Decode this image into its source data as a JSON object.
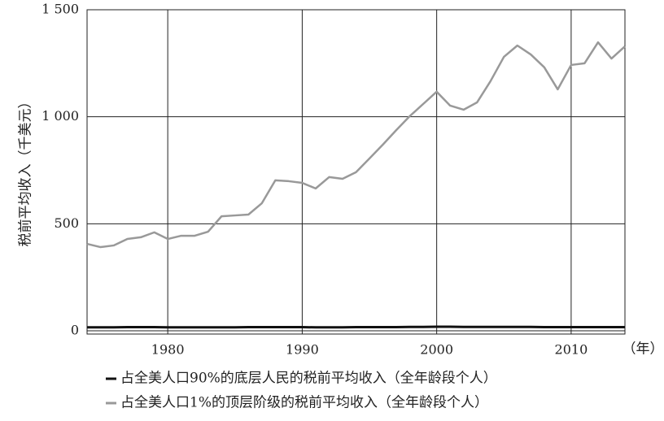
{
  "chart_data": {
    "type": "line",
    "y_label": "税前平均收入（千美元）",
    "x_unit": "（年）",
    "x": [
      1974,
      1975,
      1976,
      1977,
      1978,
      1979,
      1980,
      1981,
      1982,
      1983,
      1984,
      1985,
      1986,
      1987,
      1988,
      1989,
      1990,
      1991,
      1992,
      1993,
      1994,
      1995,
      1996,
      1997,
      1998,
      1999,
      2000,
      2001,
      2002,
      2003,
      2004,
      2005,
      2006,
      2007,
      2008,
      2009,
      2010,
      2011,
      2012,
      2013,
      2014
    ],
    "series": [
      {
        "name": "占全美人口90%的底层人民的税前平均收入（全年龄段个人）",
        "color": "#111111",
        "values": [
          16,
          16,
          16,
          17,
          17,
          17,
          16,
          16,
          16,
          16,
          16,
          16,
          17,
          17,
          17,
          17,
          17,
          16,
          16,
          16,
          17,
          17,
          17,
          17,
          18,
          18,
          19,
          19,
          18,
          18,
          18,
          18,
          18,
          18,
          17,
          17,
          17,
          17,
          17,
          17,
          17
        ]
      },
      {
        "name": "占全美人口1%的顶层阶级的税前平均收入（全年龄段个人）",
        "color": "#999999",
        "values": [
          406,
          391,
          399,
          429,
          437,
          460,
          429,
          444,
          444,
          463,
          535,
          539,
          543,
          596,
          703,
          699,
          691,
          665,
          718,
          710,
          741,
          805,
          870,
          938,
          1003,
          1060,
          1117,
          1052,
          1033,
          1067,
          1166,
          1280,
          1333,
          1291,
          1231,
          1128,
          1242,
          1250,
          1348,
          1272,
          1329
        ]
      }
    ],
    "xlim": [
      1974,
      2014
    ],
    "xticks": [
      1980,
      1990,
      2000,
      2010
    ],
    "ylim": [
      0,
      1500
    ],
    "yticks": [
      0,
      {
        "value": 500,
        "label": "500"
      },
      {
        "value": 1000,
        "label": "1 000"
      },
      {
        "value": 1500,
        "label": "1 500"
      }
    ],
    "grid": true
  }
}
